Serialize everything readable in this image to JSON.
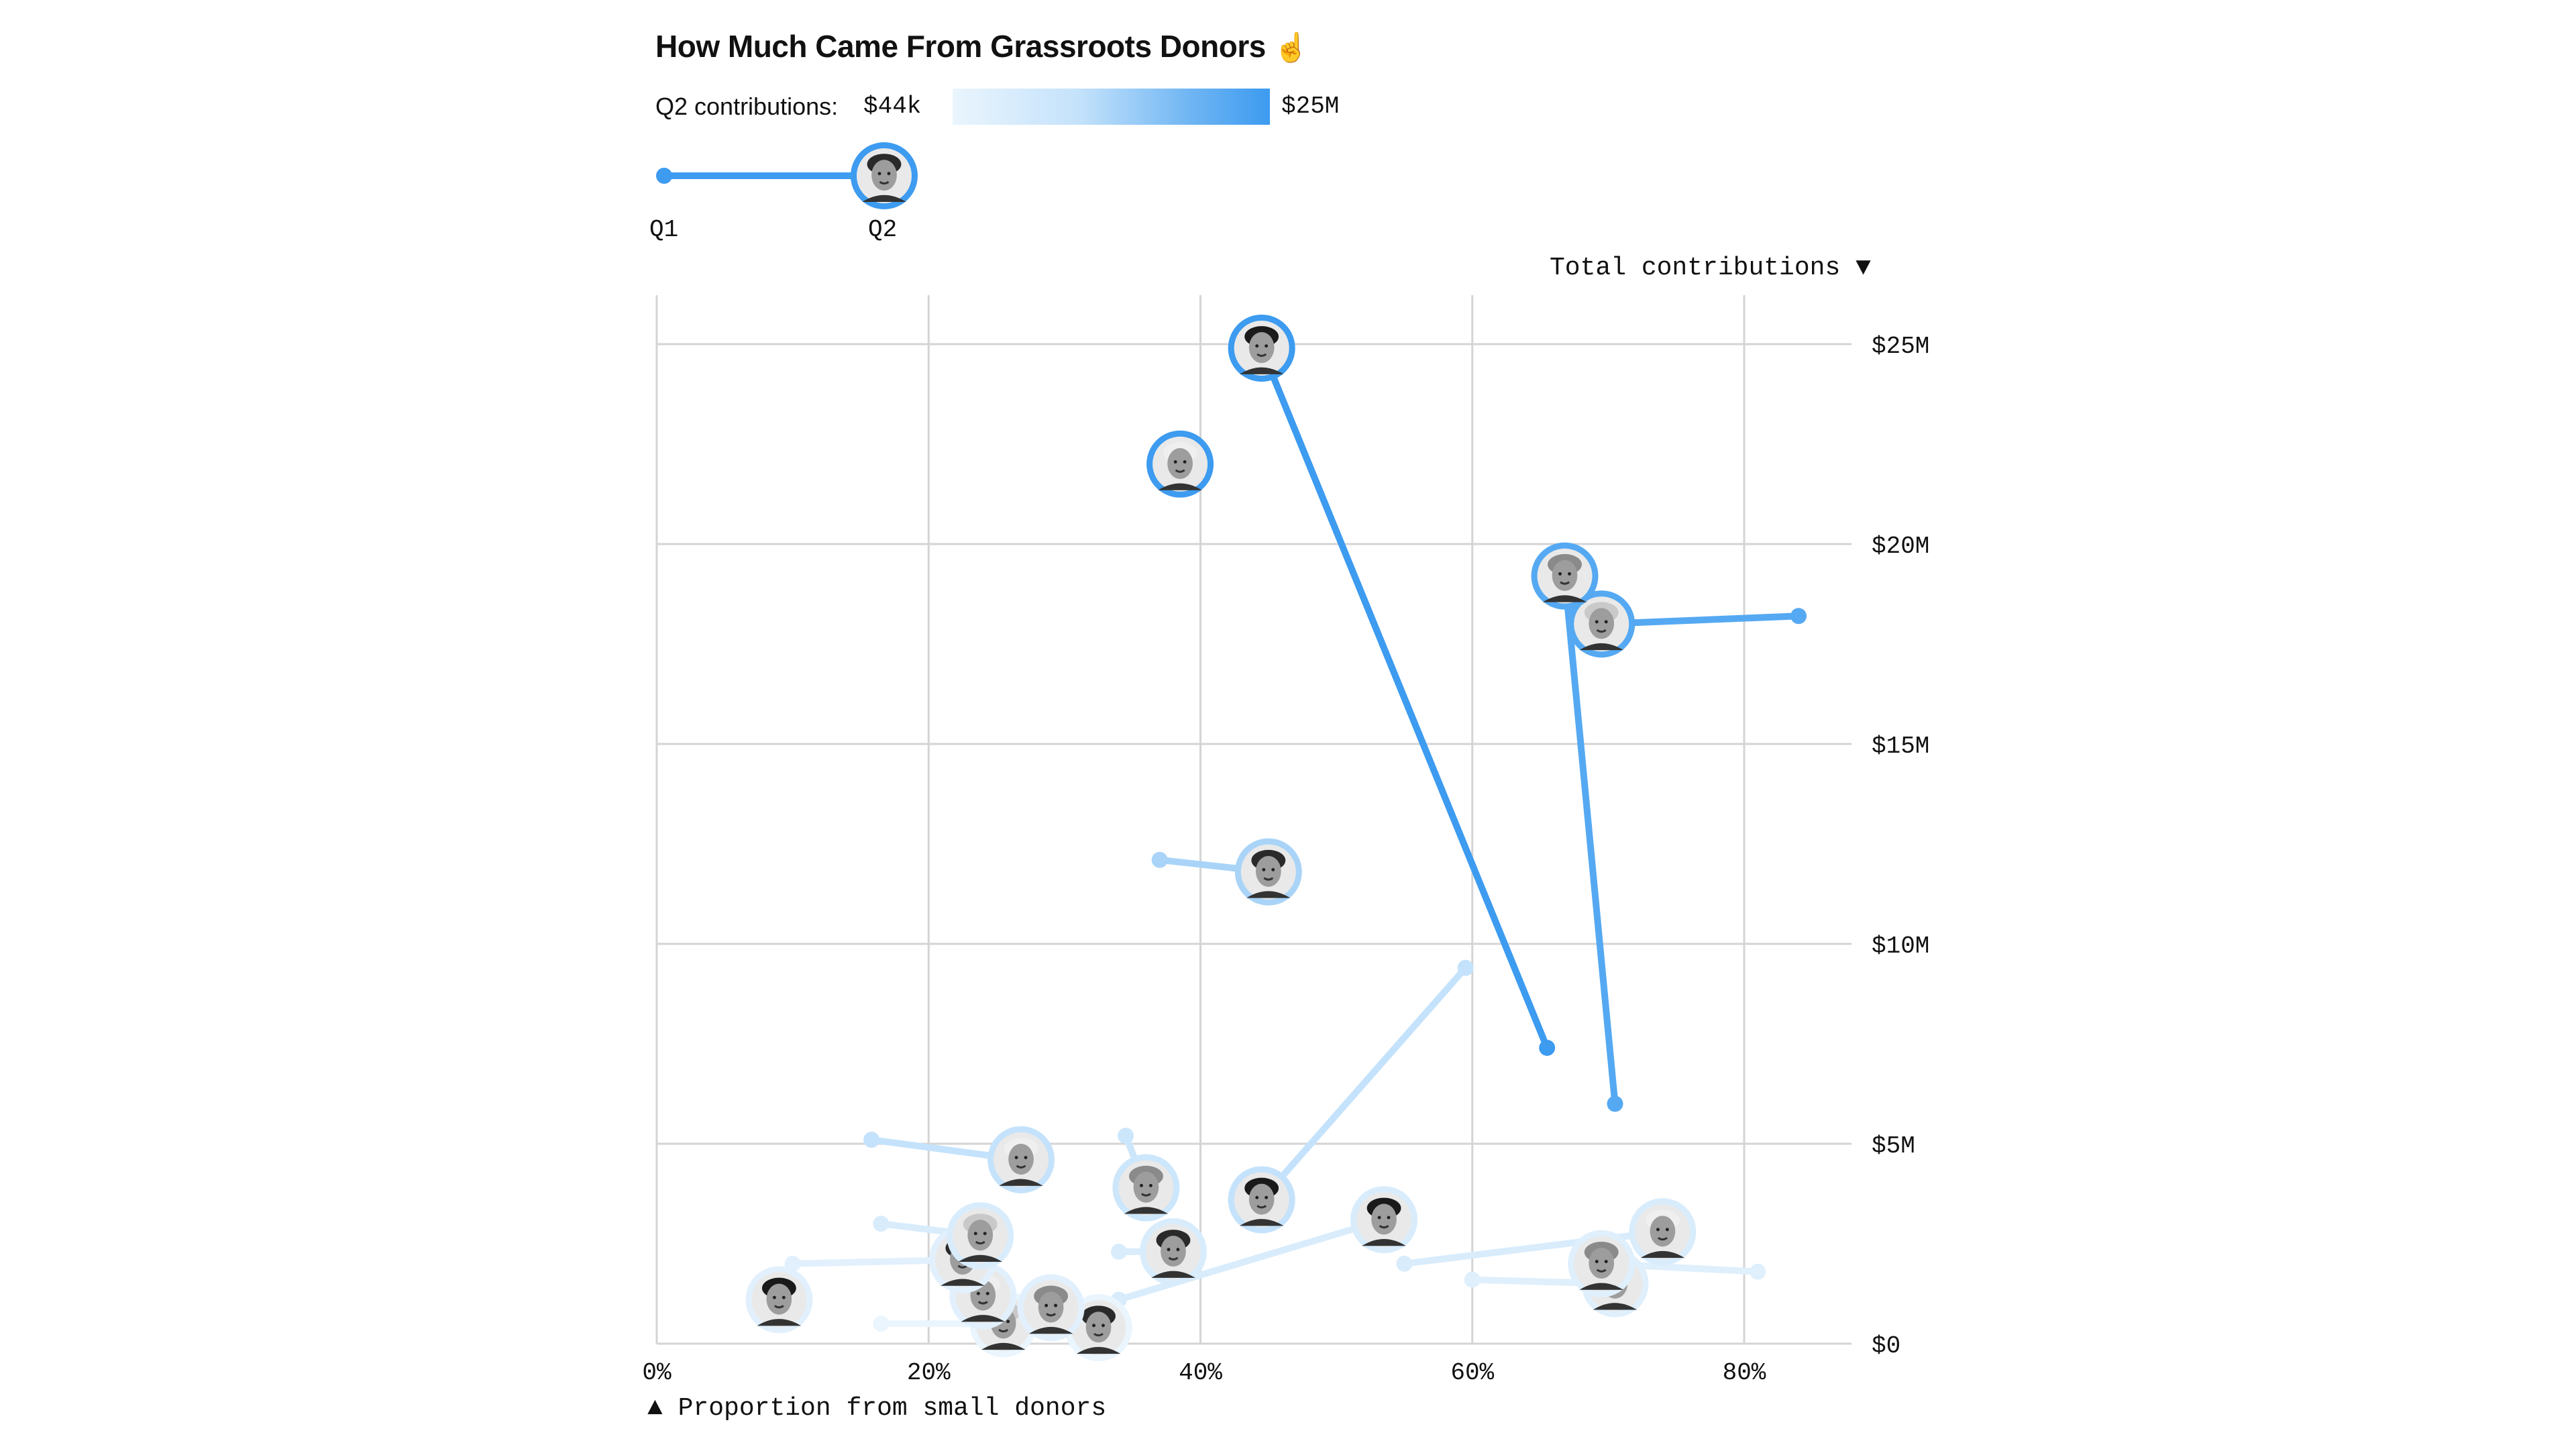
{
  "title": "How Much Came From Grassroots Donors",
  "title_icon": "pointer-hand-icon",
  "legend": {
    "label": "Q2 contributions:",
    "min_label": "$44k",
    "max_label": "$25M",
    "color_low": "#eaf5fd",
    "color_high": "#3d9bf0"
  },
  "key": {
    "q1_label": "Q1",
    "q2_label": "Q2"
  },
  "sort_control": {
    "label": "Total contributions",
    "arrow": "▼"
  },
  "x_control": {
    "label": "Proportion from small donors",
    "arrow": "▲"
  },
  "chart_data": {
    "type": "scatter",
    "xlabel": "Proportion from small donors",
    "ylabel": "Total contributions",
    "xlim": [
      0,
      88
    ],
    "ylim": [
      0,
      26
    ],
    "x_ticks": [
      "0%",
      "20%",
      "40%",
      "60%",
      "80%"
    ],
    "x_tick_values": [
      0,
      20,
      40,
      60,
      80
    ],
    "y_ticks": [
      "$0",
      "$5M",
      "$10M",
      "$15M",
      "$20M",
      "$25M"
    ],
    "y_tick_values": [
      0,
      5,
      10,
      15,
      20,
      25
    ],
    "grid": true,
    "points": [
      {
        "q1": [
          65.5,
          7.4
        ],
        "q2": [
          44.5,
          24.9
        ],
        "color": "#3d9bf0",
        "face": "short dark hair, suit"
      },
      {
        "q2": [
          38.5,
          22.0
        ],
        "color": "#3d9bf0",
        "face": "white hair, smiling"
      },
      {
        "q1": [
          70.5,
          6.0
        ],
        "q2": [
          66.8,
          19.2
        ],
        "color": "#55a9f2",
        "face": "glasses, light hair"
      },
      {
        "q1": [
          84.0,
          18.2
        ],
        "q2": [
          69.5,
          18.0
        ],
        "color": "#55a9f2",
        "face": "white hair, glasses"
      },
      {
        "q1": [
          37.0,
          12.1
        ],
        "q2": [
          45.0,
          11.8
        ],
        "color": "#a9d4f8",
        "face": "dark curly hair"
      },
      {
        "q1": [
          59.5,
          9.4
        ],
        "q2": [
          44.5,
          3.6
        ],
        "color": "#c4e2fb",
        "face": "dark hair"
      },
      {
        "q1": [
          15.8,
          5.1
        ],
        "q2": [
          26.8,
          4.6
        ],
        "color": "#c4e2fb",
        "face": "bald, smiling"
      },
      {
        "q1": [
          34.5,
          5.2
        ],
        "q2": [
          36.0,
          3.9
        ],
        "color": "#cce6fb",
        "face": "short bob"
      },
      {
        "q1": [
          16.5,
          3.0
        ],
        "q2": [
          23.8,
          2.7
        ],
        "color": "#d8ecfc",
        "face": "dark hair"
      },
      {
        "q1": [
          34.0,
          2.3
        ],
        "q2": [
          38.0,
          2.3
        ],
        "color": "#d8ecfc",
        "face": "blonde hair"
      },
      {
        "q1": [
          34.0,
          1.1
        ],
        "q2": [
          53.5,
          3.1
        ],
        "color": "#d8ecfc",
        "face": "grey hair, glasses"
      },
      {
        "q1": [
          55.0,
          2.0
        ],
        "q2": [
          74.0,
          2.8
        ],
        "color": "#d8ecfc",
        "face": "dark hair, smiling"
      },
      {
        "q1": [
          81.0,
          1.8
        ],
        "q2": [
          69.5,
          2.0
        ],
        "color": "#dfeffc",
        "face": "dark hair"
      },
      {
        "q1": [
          60.0,
          1.6
        ],
        "q2": [
          70.5,
          1.5
        ],
        "color": "#dfeffc",
        "face": "long dark hair"
      },
      {
        "q1": [
          10.0,
          2.0
        ],
        "q2": [
          22.5,
          2.1
        ],
        "color": "#e2f0fd",
        "face": "dark hair"
      },
      {
        "q2": [
          9.0,
          1.1
        ],
        "color": "#e2f0fd",
        "face": "grey hair, glasses"
      },
      {
        "q2": [
          24.0,
          1.2
        ],
        "color": "#e2f0fd",
        "face": "dark hair"
      },
      {
        "q2": [
          29.0,
          0.9
        ],
        "color": "#e2f0fd",
        "face": "dark hair, smiling"
      },
      {
        "q1": [
          16.5,
          0.5
        ],
        "q2": [
          25.5,
          0.5
        ],
        "color": "#eaf5fd",
        "face": "bald"
      },
      {
        "q2": [
          32.5,
          0.4
        ],
        "color": "#eaf5fd",
        "face": "bald, smiling"
      }
    ]
  }
}
